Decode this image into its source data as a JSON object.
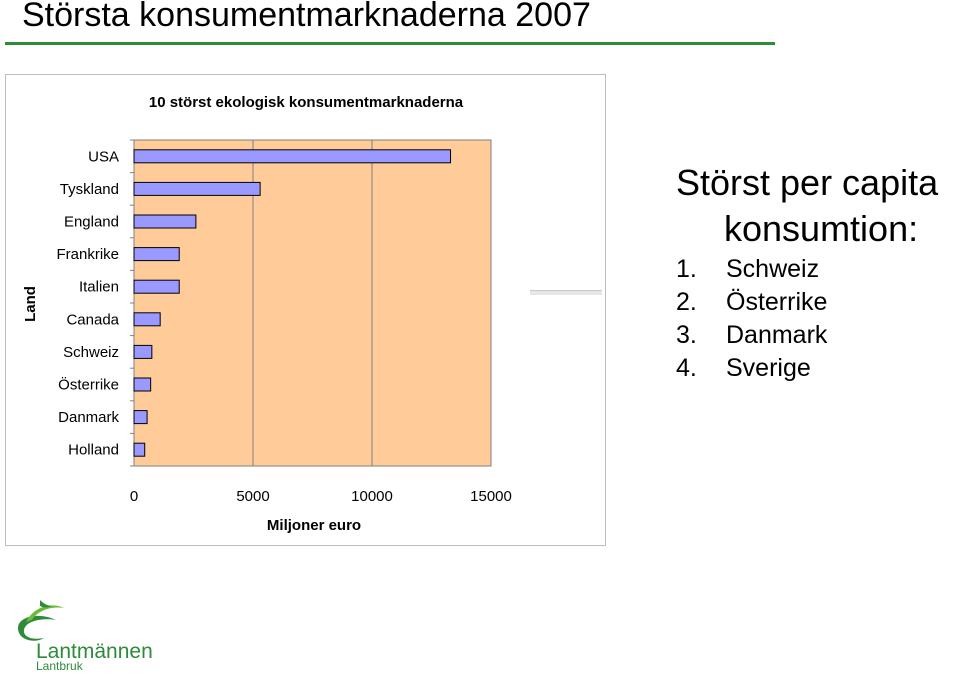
{
  "slide": {
    "title": "Största konsumentmarknaderna 2007"
  },
  "chart_data": {
    "type": "bar",
    "orientation": "horizontal",
    "title": "10 störst ekologisk konsumentmarknaderna",
    "xlabel": "Miljoner euro",
    "ylabel": "Land",
    "categories": [
      "USA",
      "Tyskland",
      "England",
      "Frankrike",
      "Italien",
      "Canada",
      "Schweiz",
      "Österrike",
      "Danmark",
      "Holland"
    ],
    "values": [
      13300,
      5300,
      2600,
      1900,
      1900,
      1100,
      750,
      700,
      550,
      450
    ],
    "xlim": [
      0,
      15000
    ],
    "xticks": [
      "0",
      "5000",
      "10000",
      "15000"
    ],
    "grid": true,
    "colors": {
      "bar": "#9999ff",
      "plot_bg": "#ffcc99",
      "bar_stroke": "#000000"
    }
  },
  "side": {
    "title_line1": "Störst per capita",
    "title_line2": "konsumtion:",
    "items": [
      {
        "num": "1.",
        "label": "Schweiz"
      },
      {
        "num": "2.",
        "label": "Österrike"
      },
      {
        "num": "3.",
        "label": "Danmark"
      },
      {
        "num": "4.",
        "label": "Sverige"
      }
    ]
  },
  "logo": {
    "name": "Lantmännen",
    "sub": "Lantbruk",
    "color": "#2e8b3a"
  }
}
